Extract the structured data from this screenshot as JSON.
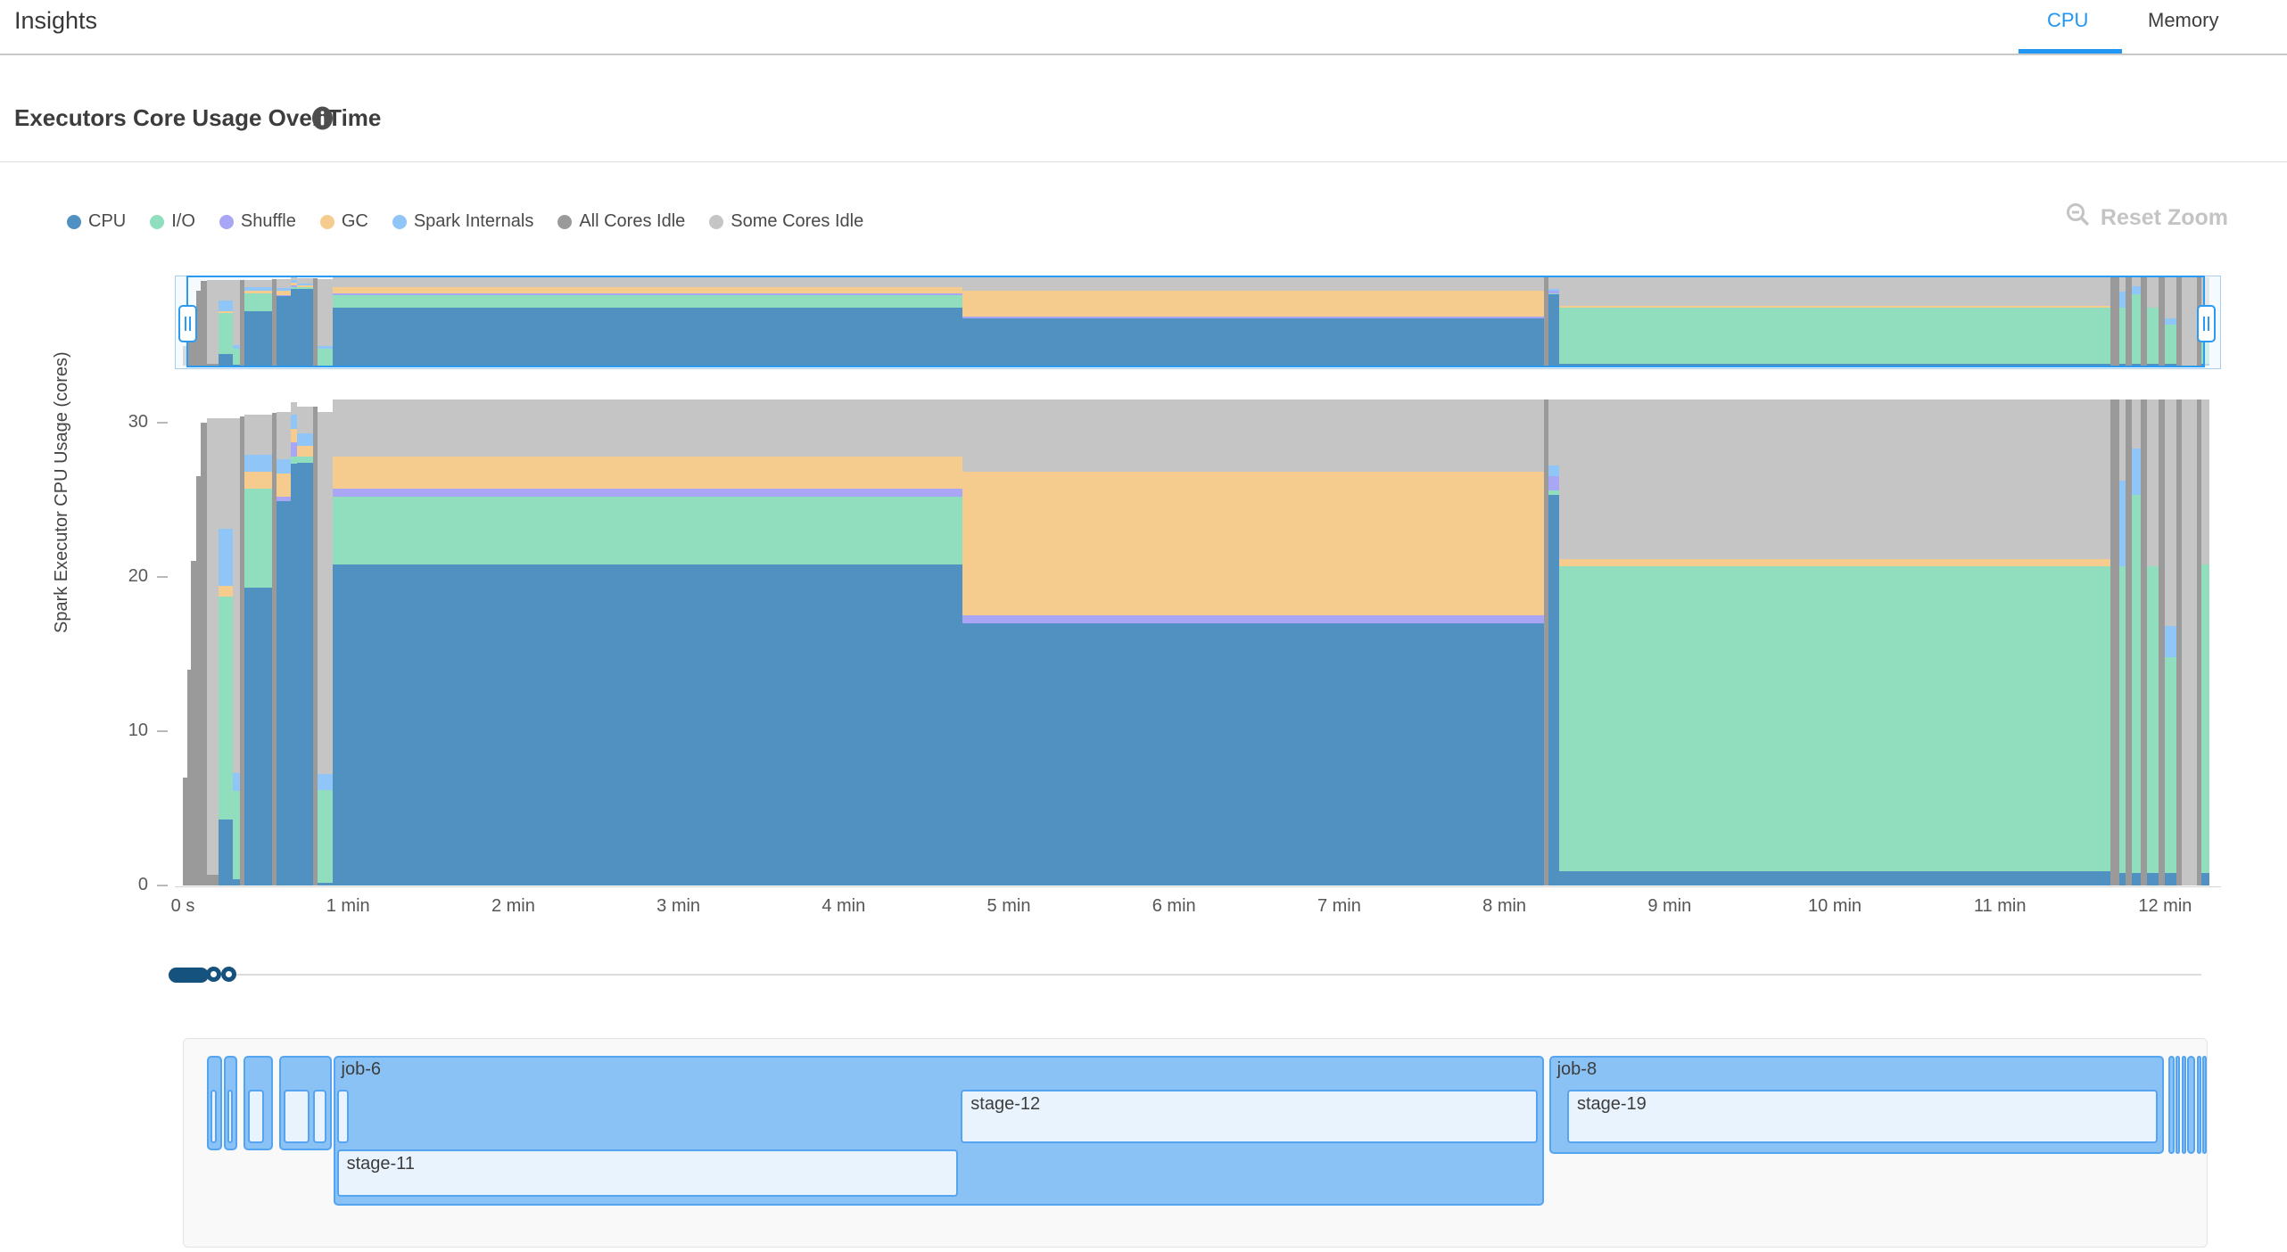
{
  "header": {
    "title": "Insights",
    "tabs": [
      {
        "label": "CPU",
        "active": true
      },
      {
        "label": "Memory",
        "active": false
      }
    ]
  },
  "section": {
    "title": "Executors Core Usage Over Time"
  },
  "toolbar": {
    "reset_zoom_label": "Reset Zoom"
  },
  "colors": {
    "accent_tab": "#2196F3",
    "navigator_border": "#2b9af3",
    "slider": "#15537E",
    "job_fill": "#8ac2f6",
    "job_border": "#55a4ef",
    "stage_fill": "#e9f3fd"
  },
  "legend": [
    {
      "label": "CPU",
      "color": "#5191C1"
    },
    {
      "label": "I/O",
      "color": "#90DEBE"
    },
    {
      "label": "Shuffle",
      "color": "#A8A6F5"
    },
    {
      "label": "GC",
      "color": "#F6CB8E"
    },
    {
      "label": "Spark Internals",
      "color": "#8FC6F7"
    },
    {
      "label": "All Cores Idle",
      "color": "#9A9A9A"
    },
    {
      "label": "Some Cores Idle",
      "color": "#C5C5C5"
    }
  ],
  "chart_data": {
    "type": "area",
    "stacked": true,
    "title": "Executors Core Usage Over Time",
    "ylabel": "Spark Executor CPU Usage (cores)",
    "xlabel": "",
    "ylim": [
      0,
      32
    ],
    "xlim_minutes": [
      0,
      12.27
    ],
    "grid": false,
    "legend_position": "top-left",
    "y_ticks": [
      0,
      10,
      20,
      30
    ],
    "x_ticks": [
      {
        "t": 0,
        "label": "0 s"
      },
      {
        "t": 1,
        "label": "1 min"
      },
      {
        "t": 2,
        "label": "2 min"
      },
      {
        "t": 3,
        "label": "3 min"
      },
      {
        "t": 4,
        "label": "4 min"
      },
      {
        "t": 5,
        "label": "5 min"
      },
      {
        "t": 6,
        "label": "6 min"
      },
      {
        "t": 7,
        "label": "7 min"
      },
      {
        "t": 8,
        "label": "8 min"
      },
      {
        "t": 9,
        "label": "9 min"
      },
      {
        "t": 10,
        "label": "10 min"
      },
      {
        "t": 11,
        "label": "11 min"
      },
      {
        "t": 12,
        "label": "12 min"
      }
    ],
    "series_order": [
      "CPU",
      "I/O",
      "Shuffle",
      "GC",
      "Spark Internals",
      "All Cores Idle",
      "Some Cores Idle"
    ],
    "segment_columns": [
      "t_start_min",
      "t_end_min",
      "CPU",
      "I/O",
      "Shuffle",
      "GC",
      "Spark Internals",
      "All Cores Idle",
      "Some Cores Idle"
    ],
    "segments": [
      [
        0.0,
        0.025,
        0,
        0,
        0,
        0,
        0,
        7,
        0
      ],
      [
        0.025,
        0.05,
        0,
        0,
        0,
        0,
        0,
        14,
        0
      ],
      [
        0.05,
        0.08,
        0,
        0,
        0,
        0,
        0,
        21,
        0
      ],
      [
        0.08,
        0.11,
        0,
        0,
        0,
        0,
        0,
        26.5,
        0
      ],
      [
        0.11,
        0.145,
        0,
        0,
        0,
        0,
        0,
        30,
        0
      ],
      [
        0.145,
        0.215,
        0,
        0,
        0,
        0,
        0,
        0.7,
        29.6
      ],
      [
        0.215,
        0.305,
        4.3,
        14.4,
        0,
        0.7,
        3.7,
        0,
        7.2
      ],
      [
        0.305,
        0.345,
        0.4,
        5.7,
        0,
        0,
        1.2,
        0,
        23
      ],
      [
        0.345,
        0.375,
        0,
        0,
        0,
        0,
        0,
        30.4,
        0
      ],
      [
        0.375,
        0.54,
        19.3,
        6.4,
        0,
        1.1,
        1.1,
        0,
        2.6
      ],
      [
        0.54,
        0.565,
        0,
        0,
        0,
        0,
        0,
        30.6,
        0
      ],
      [
        0.565,
        0.655,
        24.9,
        0,
        0.3,
        1.5,
        0.9,
        0,
        3.1
      ],
      [
        0.655,
        0.69,
        27.3,
        0.5,
        0.9,
        0.9,
        0.9,
        0,
        0.8
      ],
      [
        0.69,
        0.79,
        27.4,
        0.4,
        0,
        0.7,
        0.8,
        0,
        1.7
      ],
      [
        0.79,
        0.815,
        0,
        0,
        0,
        0,
        0,
        31,
        0
      ],
      [
        0.815,
        0.905,
        0.2,
        6.0,
        0,
        0,
        1.0,
        0,
        23.5
      ],
      [
        0.905,
        4.72,
        20.8,
        4.4,
        0.5,
        2.1,
        0,
        0,
        3.7
      ],
      [
        4.72,
        8.24,
        17.0,
        0,
        0.5,
        9.3,
        0,
        0,
        4.7
      ],
      [
        8.24,
        8.265,
        0,
        0,
        0,
        0,
        0,
        31.5,
        0
      ],
      [
        8.265,
        8.33,
        25.3,
        0.3,
        0.9,
        0,
        0.7,
        0,
        4.3
      ],
      [
        8.33,
        11.67,
        0.9,
        19.8,
        0,
        0.45,
        0,
        0,
        10.35
      ],
      [
        11.67,
        11.72,
        0,
        0,
        0,
        0,
        0,
        31.5,
        0
      ],
      [
        11.72,
        11.76,
        0.8,
        19.9,
        0,
        0,
        5.5,
        0,
        5.3
      ],
      [
        11.76,
        11.8,
        0,
        0,
        0,
        0,
        0,
        31.5,
        0
      ],
      [
        11.8,
        11.85,
        0.8,
        24.5,
        0,
        0,
        3.0,
        0,
        3.2
      ],
      [
        11.85,
        11.89,
        0,
        0,
        0,
        0,
        0,
        31.5,
        0
      ],
      [
        11.89,
        11.96,
        0.8,
        19.9,
        0,
        0,
        0,
        0,
        10.8
      ],
      [
        11.96,
        12.0,
        0,
        0,
        0,
        0,
        0,
        31.5,
        0
      ],
      [
        12.0,
        12.07,
        0.8,
        14,
        0,
        0,
        2,
        0,
        14.7
      ],
      [
        12.07,
        12.1,
        0,
        0,
        0,
        0,
        0,
        31.5,
        0
      ],
      [
        12.1,
        12.19,
        0,
        0,
        0,
        0,
        0,
        0,
        31.5
      ],
      [
        12.19,
        12.22,
        0,
        0,
        0,
        0,
        0,
        31.5,
        0
      ],
      [
        12.22,
        12.27,
        0.8,
        20,
        0,
        0,
        0,
        0,
        10.7
      ]
    ]
  },
  "timeline": {
    "jobs": [
      {
        "label": "",
        "start": 0.145,
        "end": 0.24,
        "stages": [
          {
            "label": "",
            "start": 0.166,
            "end": 0.207,
            "row": 0
          }
        ]
      },
      {
        "label": "",
        "start": 0.25,
        "end": 0.327,
        "stages": [
          {
            "label": "",
            "start": 0.27,
            "end": 0.305,
            "row": 0
          }
        ]
      },
      {
        "label": "",
        "start": 0.368,
        "end": 0.545,
        "stages": [
          {
            "label": "",
            "start": 0.392,
            "end": 0.49,
            "row": 0
          }
        ]
      },
      {
        "label": "",
        "start": 0.585,
        "end": 0.9,
        "stages": [
          {
            "label": "",
            "start": 0.61,
            "end": 0.765,
            "row": 0
          },
          {
            "label": "",
            "start": 0.787,
            "end": 0.872,
            "row": 0
          }
        ]
      },
      {
        "label": "job-6",
        "start": 0.91,
        "end": 8.24,
        "stages": [
          {
            "label": "",
            "start": 0.932,
            "end": 1.005,
            "row": 0
          },
          {
            "label": "stage-12",
            "start": 4.71,
            "end": 8.2,
            "row": 0
          },
          {
            "label": "stage-11",
            "start": 0.932,
            "end": 4.69,
            "row": 1
          }
        ]
      },
      {
        "label": "job-8",
        "start": 8.27,
        "end": 11.99,
        "stages": [
          {
            "label": "stage-19",
            "start": 8.38,
            "end": 11.955,
            "row": 0
          }
        ]
      },
      {
        "label": "",
        "start": 12.02,
        "end": 12.055,
        "stages": []
      },
      {
        "label": "",
        "start": 12.062,
        "end": 12.092,
        "stages": []
      },
      {
        "label": "",
        "start": 12.1,
        "end": 12.125,
        "stages": []
      },
      {
        "label": "",
        "start": 12.132,
        "end": 12.182,
        "stages": []
      },
      {
        "label": "",
        "start": 12.19,
        "end": 12.212,
        "stages": []
      },
      {
        "label": "",
        "start": 12.225,
        "end": 12.245,
        "stages": []
      }
    ]
  }
}
